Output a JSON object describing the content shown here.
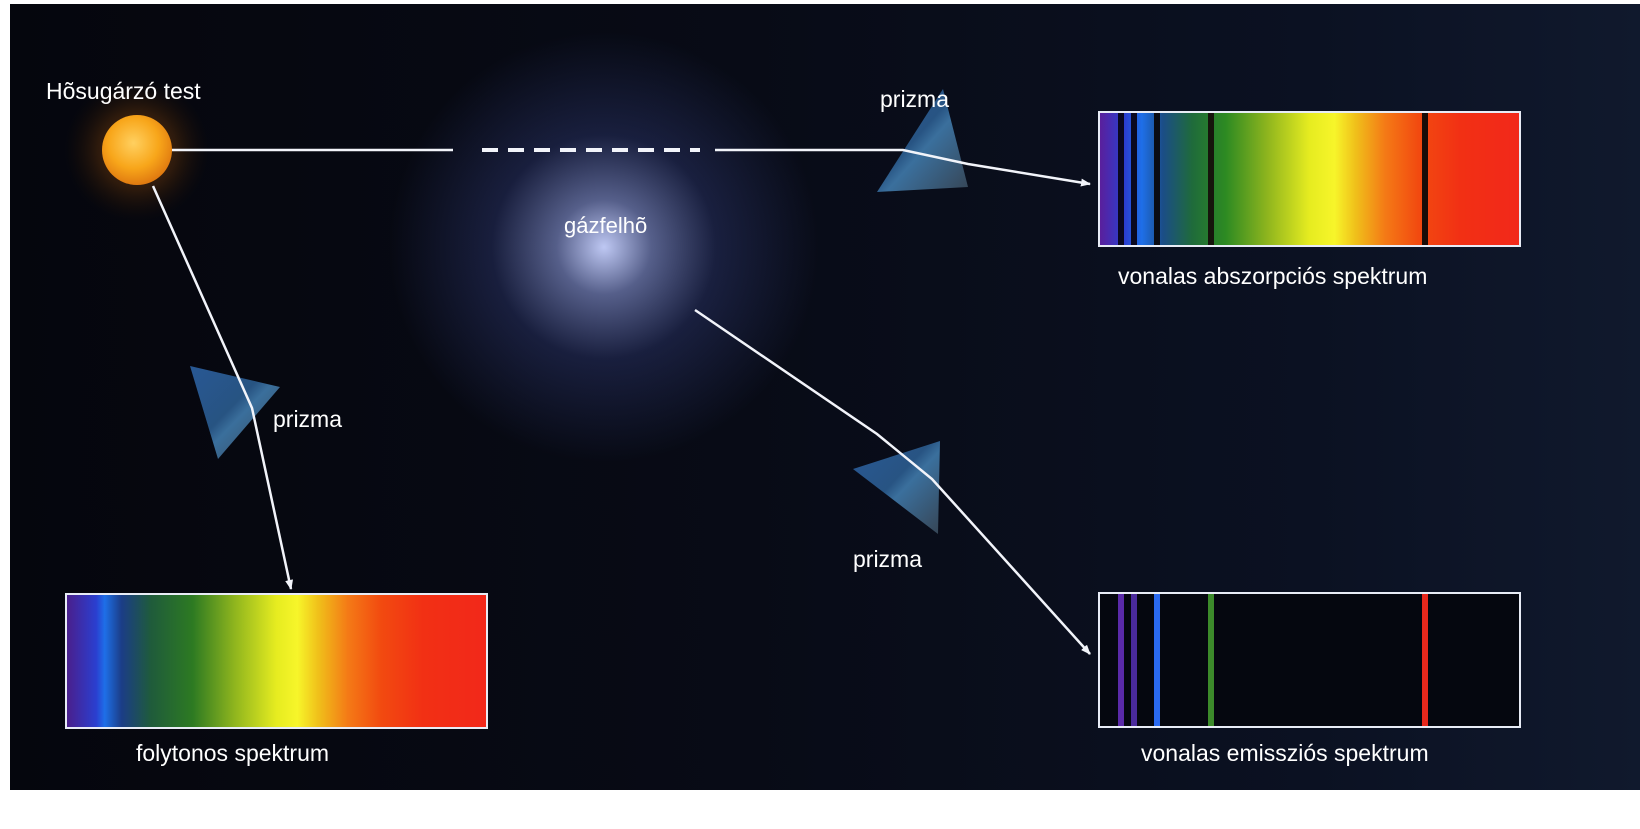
{
  "labels": {
    "heat_body": "Hõsugárzó test",
    "gas_cloud": "gázfelhõ",
    "prism_top": "prizma",
    "prism_left": "prizma",
    "prism_bottom": "prizma",
    "continuous": "folytonos spektrum",
    "absorption": "vonalas abszorpciós spektrum",
    "emission": "vonalas emissziós spektrum"
  },
  "colors": {
    "background": "#070914",
    "ray": "#f2f4fa",
    "sun_core": "#f7a81c",
    "sun_glow": "#4a2a10",
    "prism": "#2f5c8f",
    "cloud": "#b8c2ff"
  },
  "absorption_lines": [
    {
      "pos": 0.05,
      "color": "#0a0820"
    },
    {
      "pos": 0.08,
      "color": "#0a0820"
    },
    {
      "pos": 0.135,
      "color": "#0a0c14"
    },
    {
      "pos": 0.265,
      "color": "#16140c"
    },
    {
      "pos": 0.775,
      "color": "#1a0c08"
    }
  ],
  "emission_lines": [
    {
      "pos": 0.05,
      "color": "#5a2aa8"
    },
    {
      "pos": 0.08,
      "color": "#4a2a9c"
    },
    {
      "pos": 0.135,
      "color": "#2a6af0"
    },
    {
      "pos": 0.265,
      "color": "#3c8a2a"
    },
    {
      "pos": 0.775,
      "color": "#e8281c"
    }
  ]
}
